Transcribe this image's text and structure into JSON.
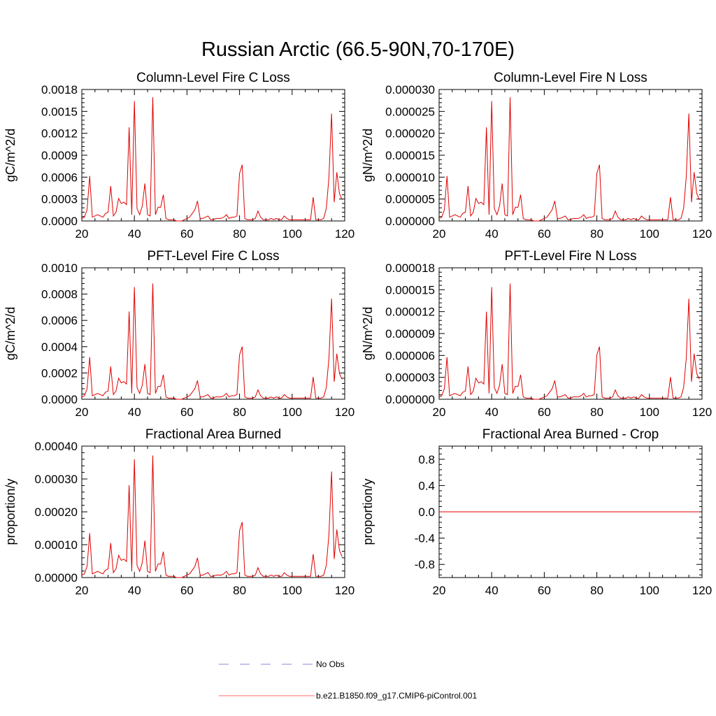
{
  "chart_data": {
    "title": "Russian Arctic (66.5-90N,70-170E)",
    "type": "line",
    "x": [
      20,
      21,
      22,
      23,
      24,
      25,
      26,
      27,
      28,
      29,
      30,
      31,
      32,
      33,
      34,
      35,
      36,
      37,
      38,
      39,
      40,
      41,
      42,
      43,
      44,
      45,
      46,
      47,
      48,
      49,
      50,
      51,
      52,
      53,
      54,
      55,
      56,
      57,
      58,
      59,
      60,
      61,
      62,
      63,
      64,
      65,
      66,
      67,
      68,
      69,
      70,
      71,
      72,
      73,
      74,
      75,
      76,
      77,
      78,
      79,
      80,
      81,
      82,
      83,
      84,
      85,
      86,
      87,
      88,
      89,
      90,
      91,
      92,
      93,
      94,
      95,
      96,
      97,
      98,
      99,
      100,
      101,
      102,
      103,
      104,
      105,
      106,
      107,
      108,
      109,
      110,
      111,
      112,
      113,
      114,
      115,
      116,
      117,
      118,
      119
    ],
    "profile": [
      0.02,
      0.03,
      0.09,
      0.36,
      0.03,
      0.04,
      0.05,
      0.04,
      0.03,
      0.06,
      0.07,
      0.28,
      0.04,
      0.07,
      0.18,
      0.14,
      0.15,
      0.13,
      0.75,
      0.05,
      0.96,
      0.1,
      0.05,
      0.12,
      0.3,
      0.05,
      0.04,
      0.99,
      0.05,
      0.11,
      0.11,
      0.21,
      0.02,
      0.01,
      0.01,
      0.01,
      0.0,
      0.0,
      0.0,
      0.01,
      0.02,
      0.03,
      0.06,
      0.09,
      0.16,
      0.02,
      0.02,
      0.03,
      0.04,
      0.01,
      0.01,
      0.02,
      0.02,
      0.02,
      0.03,
      0.05,
      0.02,
      0.03,
      0.03,
      0.04,
      0.38,
      0.45,
      0.02,
      0.01,
      0.01,
      0.01,
      0.02,
      0.08,
      0.03,
      0.01,
      0.01,
      0.01,
      0.02,
      0.01,
      0.02,
      0.01,
      0.01,
      0.04,
      0.02,
      0.01,
      0.01,
      0.01,
      0.01,
      0.01,
      0.01,
      0.01,
      0.01,
      0.01,
      0.19,
      0.01,
      0.01,
      0.01,
      0.02,
      0.1,
      0.35,
      0.86,
      0.15,
      0.39,
      0.22,
      0.17,
      0.07
    ],
    "x_range": [
      20,
      120
    ],
    "x_ticks": [
      "20",
      "40",
      "60",
      "80",
      "100",
      "120"
    ],
    "panels": [
      {
        "title": "Column-Level Fire C Loss",
        "ylabel": "gC/m^2/d",
        "ylim": [
          0,
          0.0018
        ],
        "peak": 0.00171,
        "y_ticks": [
          "0.0000",
          "0.0003",
          "0.0006",
          "0.0009",
          "0.0012",
          "0.0015",
          "0.0018"
        ]
      },
      {
        "title": "Column-Level Fire N Loss",
        "ylabel": "gN/m^2/d",
        "ylim": [
          0,
          3e-05
        ],
        "peak": 2.85e-05,
        "y_ticks": [
          "0.000000",
          "0.000005",
          "0.000010",
          "0.000015",
          "0.000020",
          "0.000025",
          "0.000030"
        ]
      },
      {
        "title": "PFT-Level Fire C Loss",
        "ylabel": "gC/m^2/d",
        "ylim": [
          0,
          0.001
        ],
        "peak": 0.00089,
        "y_ticks": [
          "0.0000",
          "0.0002",
          "0.0004",
          "0.0006",
          "0.0008",
          "0.0010"
        ]
      },
      {
        "title": "PFT-Level Fire N Loss",
        "ylabel": "gN/m^2/d",
        "ylim": [
          0,
          1.8e-05
        ],
        "peak": 1.6e-05,
        "y_ticks": [
          "0.000000",
          "0.000003",
          "0.000006",
          "0.000009",
          "0.000012",
          "0.000015",
          "0.000018"
        ]
      },
      {
        "title": "Fractional Area Burned",
        "ylabel": "proportion/y",
        "ylim": [
          0,
          0.0004
        ],
        "peak": 0.000375,
        "y_ticks": [
          "0.00000",
          "0.00010",
          "0.00020",
          "0.00030",
          "0.00040"
        ]
      },
      {
        "title": "Fractional Area Burned - Crop",
        "ylabel": "proportion/y",
        "ylim": [
          -1,
          1
        ],
        "peak": 0,
        "flat": true,
        "y_ticks": [
          "-0.8",
          "-0.4",
          "0.0",
          "0.4",
          "0.8"
        ],
        "y_tick_values": [
          -0.8,
          -0.4,
          0.0,
          0.4,
          0.8
        ]
      }
    ],
    "legend": [
      {
        "label": "No Obs",
        "color": "#8a8ad8",
        "style": "dashed"
      },
      {
        "label": "b.e21.B1850.f09_g17.CMIP6-piControl.001",
        "color": "#ff6a6a",
        "style": "solid"
      }
    ],
    "line_color": "#e00000"
  }
}
